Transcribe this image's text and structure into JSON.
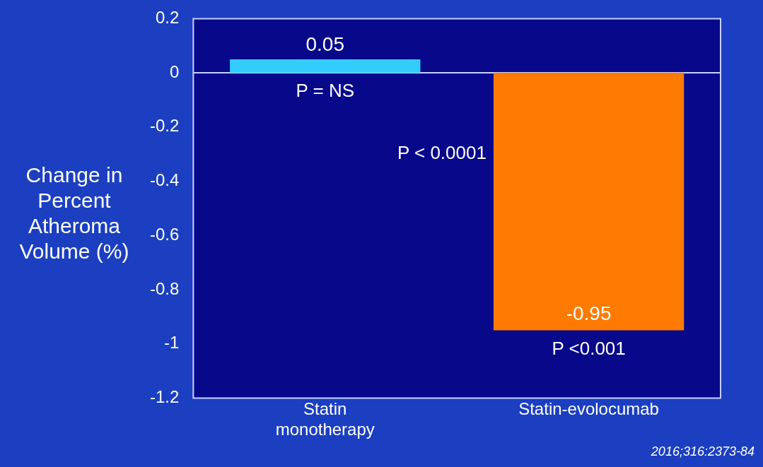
{
  "chart_data": {
    "type": "bar",
    "ylabel": "Change in Percent Atheroma Volume (%)",
    "categories": [
      "Statin monotherapy",
      "Statin-evolocumab"
    ],
    "values": [
      0.05,
      -0.95
    ],
    "colors": [
      "#33ccff",
      "#ff7a00"
    ],
    "ylim": [
      -1.2,
      0.2
    ],
    "yticks": [
      {
        "value": 0.2,
        "label": "0.2"
      },
      {
        "value": 0,
        "label": "0"
      },
      {
        "value": -0.2,
        "label": "-0.2"
      },
      {
        "value": -0.4,
        "label": "-0.4"
      },
      {
        "value": -0.6,
        "label": "-0.6"
      },
      {
        "value": -0.8,
        "label": "-0.8"
      },
      {
        "value": -1,
        "label": "-1"
      },
      {
        "value": -1.2,
        "label": "-1.2"
      }
    ],
    "grid": false,
    "data_labels": true,
    "ref_lines": [
      {
        "axis": "y",
        "value": 0,
        "color": "#c8d0ff"
      }
    ],
    "annotations": [
      "P = NS",
      "P < 0.0001",
      "P <0.001",
      "2016;316:2373-84"
    ]
  }
}
